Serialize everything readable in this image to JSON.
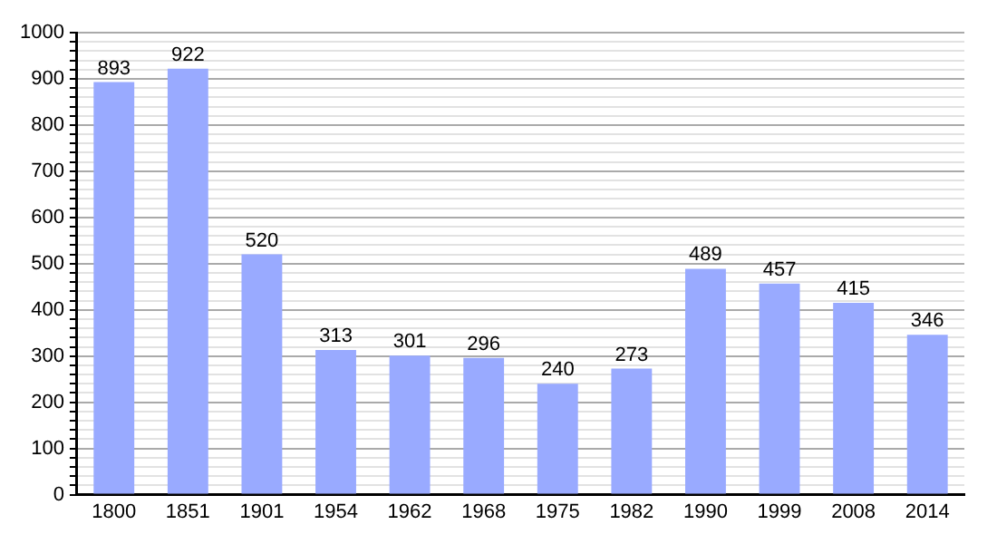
{
  "chart_data": {
    "type": "bar",
    "categories": [
      "1800",
      "1851",
      "1901",
      "1954",
      "1962",
      "1968",
      "1975",
      "1982",
      "1990",
      "1999",
      "2008",
      "2014"
    ],
    "values": [
      893,
      922,
      520,
      313,
      301,
      296,
      240,
      273,
      489,
      457,
      415,
      346
    ],
    "color": "#99aaff",
    "data_labels": true,
    "grid": "y",
    "legend": false,
    "ylim": [
      0,
      1000
    ],
    "yticks": [
      0,
      {
        "value": 20,
        "label": null
      },
      {
        "value": 40,
        "label": null
      },
      {
        "value": 60,
        "label": null
      },
      {
        "value": 80,
        "label": null
      },
      100,
      {
        "value": 120,
        "label": null
      },
      {
        "value": 140,
        "label": null
      },
      {
        "value": 160,
        "label": null
      },
      {
        "value": 180,
        "label": null
      },
      200,
      {
        "value": 220,
        "label": null
      },
      {
        "value": 240,
        "label": null
      },
      {
        "value": 260,
        "label": null
      },
      {
        "value": 280,
        "label": null
      },
      300,
      {
        "value": 320,
        "label": null
      },
      {
        "value": 340,
        "label": null
      },
      {
        "value": 360,
        "label": null
      },
      {
        "value": 380,
        "label": null
      },
      400,
      {
        "value": 420,
        "label": null
      },
      {
        "value": 440,
        "label": null
      },
      {
        "value": 460,
        "label": null
      },
      {
        "value": 480,
        "label": null
      },
      500,
      {
        "value": 520,
        "label": null
      },
      {
        "value": 540,
        "label": null
      },
      {
        "value": 560,
        "label": null
      },
      {
        "value": 580,
        "label": null
      },
      600,
      {
        "value": 620,
        "label": null
      },
      {
        "value": 640,
        "label": null
      },
      {
        "value": 660,
        "label": null
      },
      {
        "value": 680,
        "label": null
      },
      700,
      {
        "value": 720,
        "label": null
      },
      {
        "value": 740,
        "label": null
      },
      {
        "value": 760,
        "label": null
      },
      {
        "value": 780,
        "label": null
      },
      800,
      {
        "value": 820,
        "label": null
      },
      {
        "value": 840,
        "label": null
      },
      {
        "value": 860,
        "label": null
      },
      {
        "value": 880,
        "label": null
      },
      900,
      {
        "value": 920,
        "label": null
      },
      {
        "value": 940,
        "label": null
      },
      {
        "value": 960,
        "label": null
      },
      {
        "value": 980,
        "label": null
      },
      1000
    ]
  }
}
